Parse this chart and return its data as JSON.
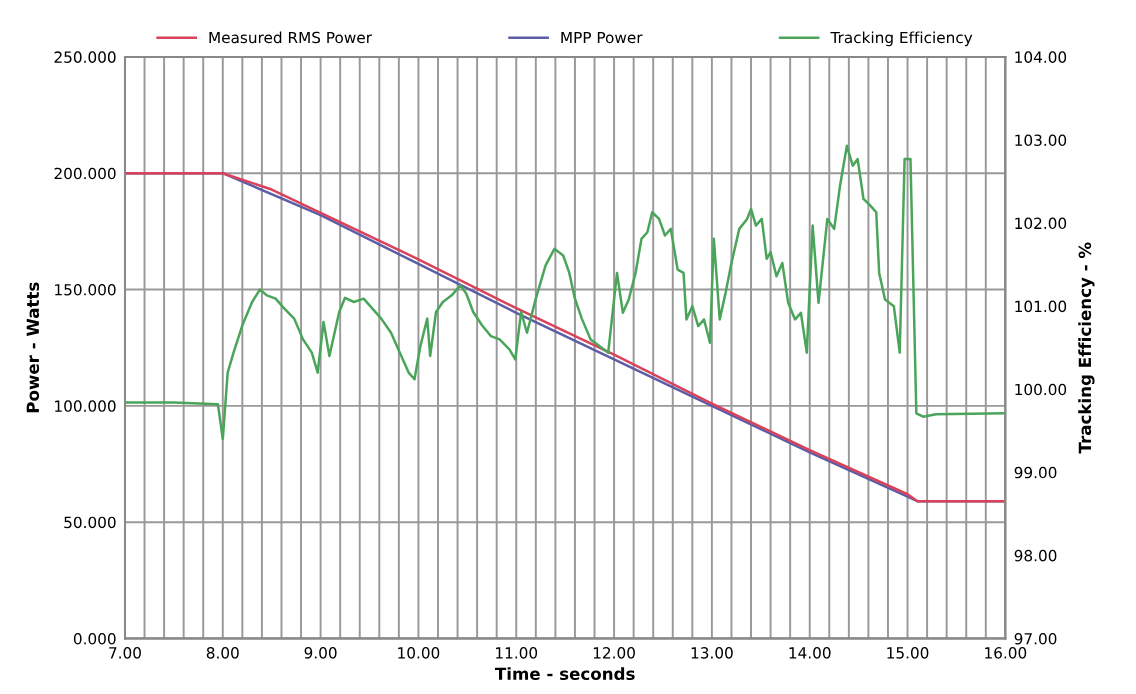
{
  "chart_data": {
    "type": "line",
    "xlabel": "Time - seconds",
    "ylabel": "Power - Watts",
    "y2label": "Tracking Efficiency - %",
    "legend": "top",
    "grid": true,
    "marker": "none",
    "line_style": "solid",
    "xlim": [
      7,
      16
    ],
    "xticks": [
      {
        "value": 7,
        "label": "7.00"
      },
      {
        "value": 7.2,
        "label": null
      },
      {
        "value": 7.4,
        "label": null
      },
      {
        "value": 7.6,
        "label": null
      },
      {
        "value": 7.8,
        "label": null
      },
      {
        "value": 8,
        "label": "8.00"
      },
      {
        "value": 8.2,
        "label": null
      },
      {
        "value": 8.4,
        "label": null
      },
      {
        "value": 8.6,
        "label": null
      },
      {
        "value": 8.8,
        "label": null
      },
      {
        "value": 9,
        "label": "9.00"
      },
      {
        "value": 9.2,
        "label": null
      },
      {
        "value": 9.4,
        "label": null
      },
      {
        "value": 9.6,
        "label": null
      },
      {
        "value": 9.8,
        "label": null
      },
      {
        "value": 10,
        "label": "10.00"
      },
      {
        "value": 10.2,
        "label": null
      },
      {
        "value": 10.4,
        "label": null
      },
      {
        "value": 10.6,
        "label": null
      },
      {
        "value": 10.8,
        "label": null
      },
      {
        "value": 11,
        "label": "11.00"
      },
      {
        "value": 11.2,
        "label": null
      },
      {
        "value": 11.4,
        "label": null
      },
      {
        "value": 11.6,
        "label": null
      },
      {
        "value": 11.8,
        "label": null
      },
      {
        "value": 12,
        "label": "12.00"
      },
      {
        "value": 12.2,
        "label": null
      },
      {
        "value": 12.4,
        "label": null
      },
      {
        "value": 12.6,
        "label": null
      },
      {
        "value": 12.8,
        "label": null
      },
      {
        "value": 13,
        "label": "13.00"
      },
      {
        "value": 13.2,
        "label": null
      },
      {
        "value": 13.4,
        "label": null
      },
      {
        "value": 13.6,
        "label": null
      },
      {
        "value": 13.8,
        "label": null
      },
      {
        "value": 14,
        "label": "14.00"
      },
      {
        "value": 14.2,
        "label": null
      },
      {
        "value": 14.4,
        "label": null
      },
      {
        "value": 14.6,
        "label": null
      },
      {
        "value": 14.8,
        "label": null
      },
      {
        "value": 15,
        "label": "15.00"
      },
      {
        "value": 15.2,
        "label": null
      },
      {
        "value": 15.4,
        "label": null
      },
      {
        "value": 15.6,
        "label": null
      },
      {
        "value": 15.8,
        "label": null
      },
      {
        "value": 16,
        "label": "16.00"
      }
    ],
    "ylim": [
      0,
      250
    ],
    "yticks": [
      {
        "value": 0,
        "label": "0.000"
      },
      {
        "value": 50,
        "label": "50.000"
      },
      {
        "value": 100,
        "label": "100.000"
      },
      {
        "value": 150,
        "label": "150.000"
      },
      {
        "value": 200,
        "label": "200.000"
      },
      {
        "value": 250,
        "label": "250.000"
      }
    ],
    "y2lim": [
      97,
      104
    ],
    "y2ticks": [
      {
        "value": 97,
        "label": "97.00"
      },
      {
        "value": 98,
        "label": "98.00"
      },
      {
        "value": 99,
        "label": "99.00"
      },
      {
        "value": 100,
        "label": "100.00"
      },
      {
        "value": 101,
        "label": "101.00"
      },
      {
        "value": 102,
        "label": "102.00"
      },
      {
        "value": 103,
        "label": "103.00"
      },
      {
        "value": 104,
        "label": "104.00"
      }
    ],
    "series": [
      {
        "name": "Measured RMS Power",
        "color": "#d9425a",
        "x": [
          7,
          8,
          8.5,
          9,
          10,
          11,
          12,
          13,
          14,
          15,
          15.1,
          16
        ],
        "values": [
          200,
          200,
          193,
          183,
          163,
          142,
          122,
          101,
          81,
          62,
          59,
          59
        ]
      },
      {
        "name": "MPP Power",
        "color": "#5b5ea6",
        "x": [
          7,
          8,
          9,
          10,
          11,
          12,
          13,
          14,
          15,
          15.1,
          16
        ],
        "values": [
          200,
          200,
          182,
          161,
          140,
          120,
          100,
          80,
          61,
          59,
          59
        ]
      },
      {
        "name": "Tracking Efficiency",
        "color": "#4aa55a",
        "axis": "y2",
        "x": [
          7.0,
          7.5,
          7.95,
          8.0,
          8.05,
          8.11,
          8.2,
          8.3,
          8.38,
          8.45,
          8.54,
          8.63,
          8.73,
          8.82,
          8.91,
          8.97,
          9.03,
          9.09,
          9.19,
          9.25,
          9.34,
          9.44,
          9.53,
          9.62,
          9.72,
          9.81,
          9.9,
          9.96,
          10.02,
          10.09,
          10.12,
          10.18,
          10.25,
          10.34,
          10.43,
          10.49,
          10.56,
          10.65,
          10.74,
          10.83,
          10.93,
          10.99,
          11.05,
          11.11,
          11.2,
          11.3,
          11.39,
          11.48,
          11.54,
          11.6,
          11.67,
          11.76,
          11.85,
          11.94,
          12.03,
          12.09,
          12.15,
          12.22,
          12.28,
          12.34,
          12.39,
          12.46,
          12.52,
          12.58,
          12.65,
          12.71,
          12.74,
          12.8,
          12.86,
          12.92,
          12.98,
          13.02,
          13.08,
          13.14,
          13.2,
          13.28,
          13.36,
          13.4,
          13.45,
          13.51,
          13.56,
          13.6,
          13.66,
          13.72,
          13.78,
          13.85,
          13.91,
          13.97,
          14.03,
          14.09,
          14.18,
          14.25,
          14.31,
          14.38,
          14.44,
          14.49,
          14.55,
          14.62,
          14.68,
          14.71,
          14.77,
          14.86,
          14.92,
          14.97,
          15.03,
          15.09,
          15.16,
          15.29,
          16.0
        ],
        "values": [
          99.84,
          99.84,
          99.82,
          99.4,
          100.2,
          100.44,
          100.77,
          101.05,
          101.2,
          101.13,
          101.09,
          100.97,
          100.85,
          100.6,
          100.44,
          100.2,
          100.81,
          100.4,
          100.93,
          101.1,
          101.05,
          101.09,
          100.97,
          100.85,
          100.68,
          100.44,
          100.2,
          100.12,
          100.52,
          100.85,
          100.4,
          100.93,
          101.05,
          101.13,
          101.25,
          101.15,
          100.93,
          100.77,
          100.64,
          100.6,
          100.48,
          100.36,
          100.93,
          100.68,
          101.09,
          101.49,
          101.69,
          101.61,
          101.41,
          101.09,
          100.85,
          100.6,
          100.52,
          100.44,
          101.4,
          100.92,
          101.08,
          101.4,
          101.81,
          101.89,
          102.13,
          102.05,
          101.85,
          101.93,
          101.44,
          101.4,
          100.84,
          101.0,
          100.76,
          100.84,
          100.56,
          101.81,
          100.84,
          101.16,
          101.52,
          101.93,
          102.05,
          102.17,
          101.97,
          102.05,
          101.57,
          101.65,
          101.36,
          101.52,
          101.04,
          100.84,
          100.92,
          100.44,
          101.97,
          101.04,
          102.05,
          101.93,
          102.45,
          102.93,
          102.69,
          102.77,
          102.29,
          102.21,
          102.13,
          101.4,
          101.08,
          101.0,
          100.44,
          102.77,
          102.77,
          99.71,
          99.67,
          99.7,
          99.71
        ]
      }
    ]
  }
}
